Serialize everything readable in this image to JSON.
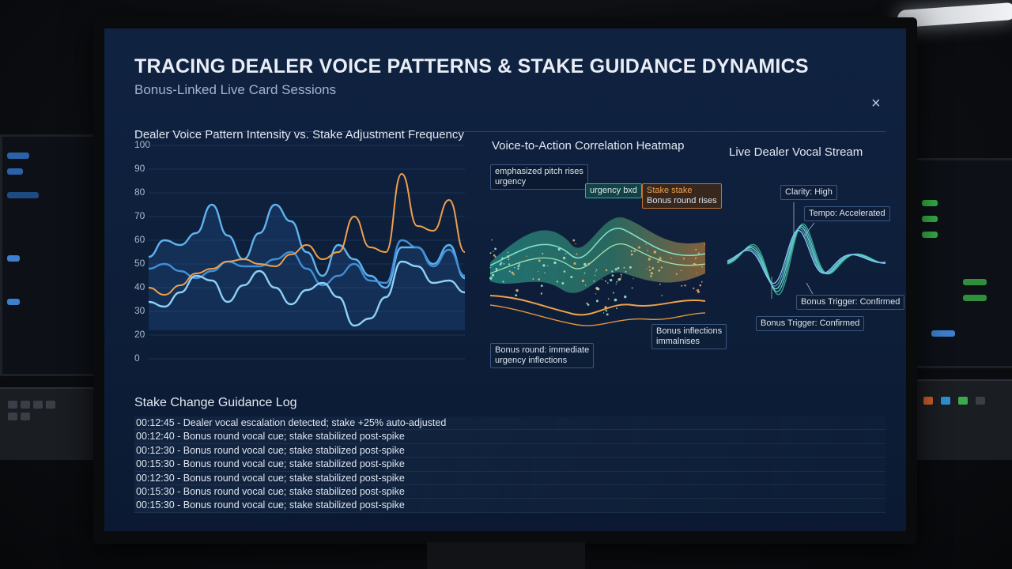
{
  "dashboard": {
    "title": "TRACING DEALER VOICE PATTERNS & STAKE GUIDANCE DYNAMICS",
    "subtitle": "Bonus-Linked Live Card Sessions",
    "close_label": "×"
  },
  "intensity_panel": {
    "title": "Dealer Voice Pattern Intensity vs. Stake Adjustment Frequency"
  },
  "heatmap_panel": {
    "title": "Voice-to-Action Correlation Heatmap",
    "callouts": {
      "pitch_l1": "emphasized pitch rises",
      "pitch_l2": "urgency",
      "urgency": "urgency bxd",
      "stake_l1": "Stake stake",
      "stake_l2": "Bonus round rises",
      "bonus_round_l1": "Bonus round: immediate",
      "bonus_round_l2": "urgency inflections",
      "bonus_infl_l1": "Bonus inflections",
      "bonus_infl_l2": "immalnises"
    }
  },
  "vocal_panel": {
    "title": "Live Dealer Vocal Stream",
    "callouts": {
      "clarity": "Clarity: High",
      "tempo": "Tempo: Accelerated",
      "trigger_right": "Bonus Trigger: Confirmed",
      "trigger_left": "Bonus Trigger: Confirmed"
    }
  },
  "log": {
    "title": "Stake Change Guidance Log",
    "entries": [
      "00:12:45 - Dealer vocal escalation detected; stake +25% auto-adjusted",
      "00:12:40 - Bonus round vocal cue; stake stabilized post-spike",
      "00:12:30 - Bonus round vocal cue; stake stabilized post-spike",
      "00:15:30 - Bonus round vocal cue; stake stabilized post-spike",
      "00:12:30 - Bonus round vocal cue; stake stabilized post-spike",
      "00:15:30 - Bonus round vocal cue; stake stabilized post-spike",
      "00:15:30 - Bonus round vocal cue; stake stabilized post-spike"
    ]
  },
  "colors": {
    "screen_bg": "#0f2240",
    "series_light_blue": "#5fb3ee",
    "series_blue": "#3f8fd8",
    "series_orange": "#f0a04a",
    "teal": "#2fb3a0"
  },
  "chart_data": [
    {
      "type": "line",
      "title": "Dealer Voice Pattern Intensity vs. Stake Adjustment Frequency",
      "ylim": [
        0,
        100
      ],
      "yticks": [
        0,
        20,
        30,
        40,
        50,
        60,
        70,
        80,
        90,
        100
      ],
      "x": [
        0,
        1,
        2,
        3,
        4,
        5,
        6,
        7,
        8,
        9,
        10,
        11,
        12,
        13,
        14,
        15,
        16,
        17,
        18,
        19,
        20
      ],
      "grid": true,
      "series": [
        {
          "color": "#5fb3ee",
          "values": [
            53,
            60,
            58,
            63,
            75,
            62,
            52,
            63,
            75,
            68,
            55,
            45,
            58,
            52,
            45,
            40,
            57,
            57,
            50,
            58,
            44
          ]
        },
        {
          "color": "#3f8fd8",
          "values": [
            48,
            50,
            47,
            44,
            47,
            51,
            49,
            49,
            52,
            55,
            48,
            41,
            45,
            50,
            43,
            42,
            60,
            57,
            49,
            56,
            45
          ]
        },
        {
          "color": "#8ed0f7",
          "values": [
            34,
            32,
            38,
            45,
            43,
            34,
            41,
            47,
            40,
            33,
            39,
            42,
            36,
            24,
            27,
            36,
            51,
            49,
            42,
            43,
            38
          ]
        },
        {
          "color": "#f0a04a",
          "values": [
            40,
            37,
            41,
            46,
            48,
            51,
            52,
            50,
            49,
            54,
            58,
            52,
            55,
            70,
            57,
            55,
            88,
            66,
            64,
            77,
            55
          ]
        }
      ]
    }
  ]
}
